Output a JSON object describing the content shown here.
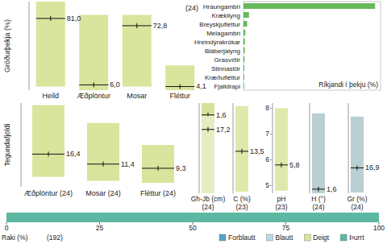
{
  "chart_data": [
    {
      "type": "range_bar",
      "y_label": "Gróðurþekja (%)",
      "annotation": "(24)",
      "categories": [
        "Heild",
        "Æðplöntur",
        "Mosar",
        "Fléttur"
      ],
      "values": [
        81.0,
        6.0,
        72.8,
        4.1
      ],
      "value_labels": [
        "81,0",
        "6,0",
        "72,8",
        "4,1"
      ],
      "ranges": [
        [
          4,
          100
        ],
        [
          0,
          85
        ],
        [
          4,
          85
        ],
        [
          0,
          28
        ]
      ],
      "ylim": [
        0,
        100
      ],
      "tick_labels": "x",
      "color": "#d9e59c"
    },
    {
      "type": "bar",
      "orientation": "horizontal",
      "x_label": "Ríkjandi í þekju (%)",
      "categories": [
        "Hraungambri",
        "Krækilyng",
        "Breyskjufléttur",
        "Melagambri",
        "Hreindýrakrókar",
        "Bláberjalyng",
        "Grasvíðir",
        "Stinnastör",
        "Kræðufléttur",
        "Fjalldrapi"
      ],
      "values": [
        72,
        3,
        2,
        1,
        0.8,
        0.7,
        0.6,
        0.5,
        0.4,
        0.3
      ],
      "xlim": [
        0,
        75
      ],
      "tick_labels": "y",
      "color": "#66b85a"
    },
    {
      "type": "range_bar",
      "y_label": "Tegundafjöldi",
      "categories": [
        "Æðplöntur (24)",
        "Mosar (24)",
        "Fléttur (24)"
      ],
      "values": [
        16.4,
        11.4,
        9.3
      ],
      "value_labels": [
        "16,4",
        "11,4",
        "9,3"
      ],
      "ranges": [
        [
          5,
          41
        ],
        [
          3,
          32
        ],
        [
          2,
          21
        ]
      ],
      "ylim": [
        0,
        42
      ],
      "tick_labels": "x",
      "color": "#d9e59c"
    },
    {
      "type": "range_bar",
      "x_label": "Gh-Jb (cm)",
      "annotation": "(24)",
      "tick_labels": false,
      "series": [
        {
          "values": [
            1.6
          ],
          "value_labels": [
            "1,6"
          ],
          "ranges": [
            [
              0,
              17
            ]
          ],
          "ylim": [
            0,
            17
          ],
          "color": "#d3e29a"
        },
        {
          "values": [
            17.2
          ],
          "value_labels": [
            "17,2"
          ],
          "ranges": [
            [
              0,
              100
            ]
          ],
          "ylim": [
            0,
            100
          ],
          "color": "#e6edc2"
        }
      ]
    },
    {
      "type": "range_bar",
      "x_label": "C (%)",
      "annotation": "(23)",
      "values": [
        13.5
      ],
      "value_labels": [
        "13,5"
      ],
      "ranges": [
        [
          0.5,
          28
        ]
      ],
      "ylim": [
        0,
        29
      ],
      "tick_labels": false,
      "color": "#dfe8ab"
    },
    {
      "type": "range_bar",
      "x_label": "pH",
      "annotation": "(23)",
      "values": [
        5.8
      ],
      "value_labels": [
        "5,8"
      ],
      "ranges": [
        [
          4.8,
          8.0
        ]
      ],
      "ylim": [
        4.7,
        8.2
      ],
      "yticks": [
        5,
        6,
        7,
        8
      ],
      "tick_labels": "y",
      "color": "#dfe8ab"
    },
    {
      "type": "range_bar",
      "x_label": "H (°)",
      "annotation": "(24)",
      "values": [
        1.6
      ],
      "value_labels": [
        "1,6"
      ],
      "ranges": [
        [
          0,
          31
        ]
      ],
      "ylim": [
        0,
        35
      ],
      "tick_labels": false,
      "color": "#b9cfd1"
    },
    {
      "type": "range_bar",
      "x_label": "Gr (%)",
      "annotation": "(24)",
      "values": [
        16.9
      ],
      "value_labels": [
        "16,9"
      ],
      "ranges": [
        [
          0.5,
          51
        ]
      ],
      "ylim": [
        0,
        60
      ],
      "tick_labels": false,
      "color": "#b9cfd1"
    },
    {
      "type": "bar",
      "orientation": "horizontal",
      "stacked": true,
      "x_label": "Raki (%)",
      "annotation": "(192)",
      "categories": [
        null
      ],
      "series": [
        {
          "name": "Forblautt",
          "color": "#4fa3c7",
          "values": [
            0
          ]
        },
        {
          "name": "Blautt",
          "color": "#b5dbe8",
          "values": [
            0
          ]
        },
        {
          "name": "Deigt",
          "color": "#d9e69c",
          "values": [
            0
          ]
        },
        {
          "name": "Þurrt",
          "color": "#5cb8a0",
          "values": [
            100
          ]
        }
      ],
      "xlim": [
        0,
        100
      ],
      "xticks": [
        0,
        25,
        50,
        75,
        100
      ],
      "legend": "bottom",
      "tick_labels": "x"
    }
  ]
}
